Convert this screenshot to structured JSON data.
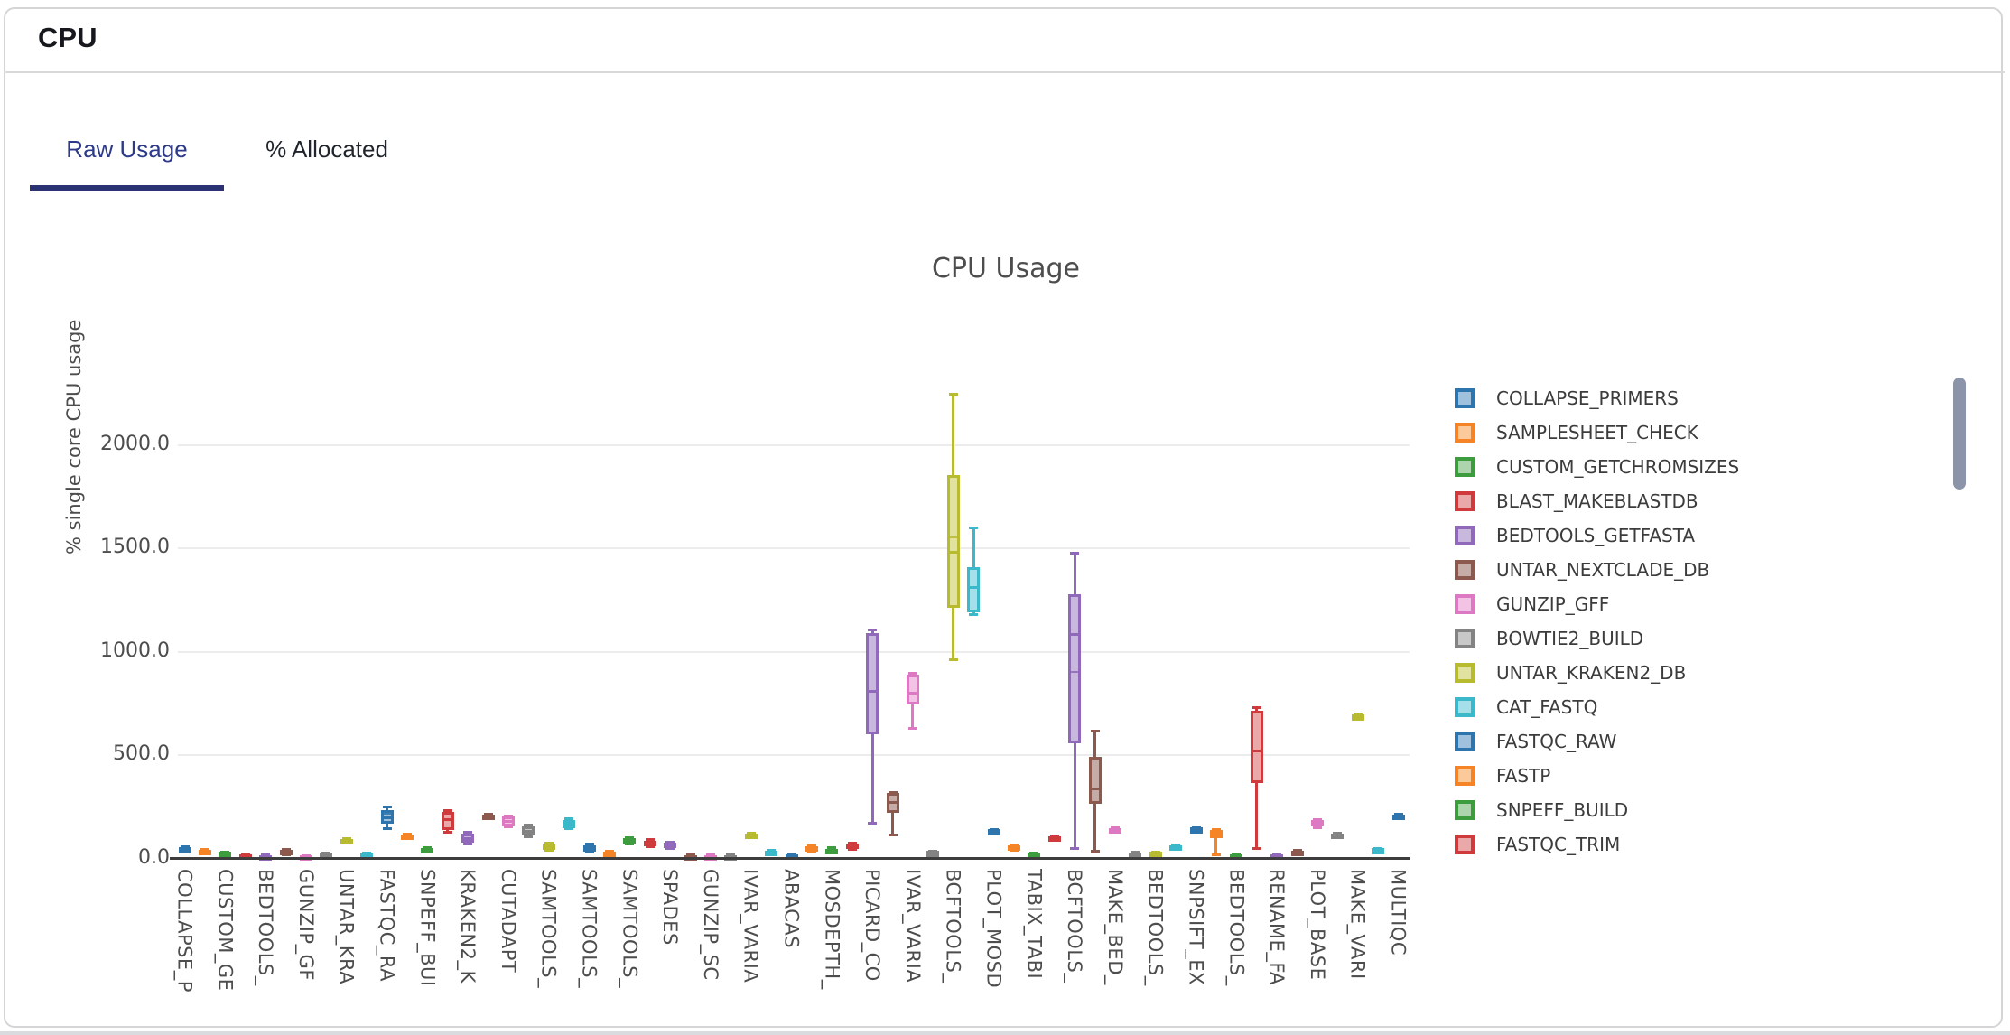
{
  "card": {
    "title": "CPU"
  },
  "tabs": {
    "active_label": "Raw Usage",
    "inactive_label": "% Allocated"
  },
  "colors": {
    "active_tab": "#2d3a8a",
    "tab_underline": "#2a3274",
    "scrollbar": "#8b94a8",
    "axis_line": "#3d3d3d",
    "grid_line": "#ececec"
  },
  "chart_data": {
    "type": "boxplot",
    "title": "CPU Usage",
    "ylabel": "% single core CPU usage",
    "xlabel": "",
    "grid": true,
    "legend_position": "right",
    "legend_scrollable": true,
    "ylim": [
      0,
      2300
    ],
    "yticks": [
      0,
      500,
      1000,
      1500,
      2000
    ],
    "ytick_labels": [
      "0.0",
      "500.0",
      "1000.0",
      "1500.0",
      "2000.0"
    ],
    "xtick_labels": [
      "COLLAPSE_P",
      "CUSTOM_GE",
      "BEDTOOLS_",
      "GUNZIP_GF",
      "UNTAR_KRA",
      "FASTQC_RA",
      "SNPEFF_BUI",
      "KRAKEN2_K",
      "CUTADAPT",
      "SAMTOOLS_",
      "SAMTOOLS_",
      "SAMTOOLS_",
      "SPADES",
      "GUNZIP_SC",
      "IVAR_VARIA",
      "ABACAS",
      "MOSDEPTH_",
      "PICARD_CO",
      "IVAR_VARIA",
      "BCFTOOLS_",
      "PLOT_MOSD",
      "TABIX_TABI",
      "BCFTOOLS_",
      "MAKE_BED_",
      "BEDTOOLS_",
      "SNPSIFT_EX",
      "BEDTOOLS_",
      "RENAME_FA",
      "PLOT_BASE",
      "MAKE_VARI",
      "MULTIQC"
    ],
    "series_format": [
      "low",
      "q1",
      "median",
      "q3",
      "high",
      "mean(optional)"
    ],
    "series": [
      [
        30,
        40,
        48,
        57,
        62
      ],
      [
        22,
        27,
        34,
        42,
        46
      ],
      [
        13,
        18,
        25,
        33,
        37
      ],
      [
        4,
        7,
        13,
        21,
        25
      ],
      [
        4,
        6,
        11,
        17,
        21
      ],
      [
        18,
        23,
        31,
        42,
        47
      ],
      [
        3,
        5,
        10,
        16,
        19
      ],
      [
        7,
        10,
        17,
        25,
        29
      ],
      [
        74,
        79,
        86,
        95,
        100
      ],
      [
        7,
        10,
        17,
        25,
        29
      ],
      [
        143,
        170,
        200,
        235,
        252,
        218
      ],
      [
        96,
        101,
        109,
        117,
        121
      ],
      [
        31,
        36,
        43,
        51,
        55
      ],
      [
        126,
        139,
        191,
        226,
        235
      ],
      [
        70,
        80,
        99,
        121,
        130
      ],
      [
        196,
        200,
        206,
        212,
        216
      ],
      [
        152,
        159,
        180,
        203,
        211
      ],
      [
        105,
        114,
        135,
        158,
        166
      ],
      [
        40,
        46,
        57,
        71,
        77
      ],
      [
        143,
        150,
        169,
        189,
        196
      ],
      [
        31,
        37,
        50,
        66,
        72
      ],
      [
        9,
        14,
        23,
        33,
        38
      ],
      [
        70,
        76,
        87,
        99,
        105
      ],
      [
        57,
        63,
        76,
        88,
        94
      ],
      [
        48,
        54,
        65,
        78,
        84
      ],
      [
        5,
        8,
        13,
        18,
        22
      ],
      [
        4,
        7,
        12,
        17,
        20
      ],
      [
        4,
        7,
        12,
        17,
        20
      ],
      [
        100,
        105,
        112,
        120,
        125
      ],
      [
        17,
        22,
        30,
        39,
        44
      ],
      [
        8,
        11,
        16,
        22,
        26
      ],
      [
        36,
        41,
        50,
        60,
        65
      ],
      [
        28,
        33,
        41,
        50,
        55
      ],
      [
        44,
        50,
        61,
        73,
        79
      ],
      [
        170,
        600,
        810,
        1090,
        1110
      ],
      [
        115,
        222,
        274,
        318,
        324
      ],
      [
        630,
        744,
        800,
        890,
        900
      ],
      [
        24,
        27,
        31,
        36,
        39
      ],
      [
        960,
        1215,
        1483,
        1855,
        2245,
        1553
      ],
      [
        1180,
        1192,
        1310,
        1410,
        1600
      ],
      [
        128,
        131,
        136,
        141,
        144
      ],
      [
        40,
        46,
        55,
        65,
        70
      ],
      [
        12,
        16,
        22,
        28,
        32
      ],
      [
        98,
        100,
        104,
        108,
        110
      ],
      [
        50,
        560,
        1085,
        1280,
        1480,
        905
      ],
      [
        35,
        265,
        340,
        495,
        620
      ],
      [
        126,
        131,
        139,
        147,
        152
      ],
      [
        14,
        18,
        23,
        29,
        33
      ],
      [
        18,
        22,
        27,
        33,
        37
      ],
      [
        48,
        52,
        59,
        66,
        70
      ],
      [
        136,
        139,
        144,
        149,
        152
      ],
      [
        17,
        100,
        120,
        138,
        143
      ],
      [
        12,
        14,
        17,
        21,
        23
      ],
      [
        50,
        365,
        520,
        715,
        732
      ],
      [
        10,
        13,
        17,
        21,
        24
      ],
      [
        22,
        26,
        32,
        39,
        43
      ],
      [
        148,
        155,
        170,
        186,
        192
      ],
      [
        105,
        110,
        116,
        123,
        127
      ],
      [
        686,
        688,
        691,
        694,
        696
      ],
      [
        35,
        39,
        44,
        49,
        52
      ],
      [
        196,
        200,
        207,
        214,
        218
      ]
    ],
    "palette": [
      {
        "name": "blue",
        "stroke": "#2e74ad",
        "fill": "#9fc1dd"
      },
      {
        "name": "orange",
        "stroke": "#f58426",
        "fill": "#fbc99a"
      },
      {
        "name": "green",
        "stroke": "#3d9c3d",
        "fill": "#aed4ae"
      },
      {
        "name": "red",
        "stroke": "#cf3b3c",
        "fill": "#eaa8a9"
      },
      {
        "name": "purple",
        "stroke": "#9069bb",
        "fill": "#c9b8de"
      },
      {
        "name": "brown",
        "stroke": "#8c594e",
        "fill": "#c6aca6"
      },
      {
        "name": "pink",
        "stroke": "#dd79c2",
        "fill": "#f2c3e4"
      },
      {
        "name": "gray",
        "stroke": "#838383",
        "fill": "#c8c8c8"
      },
      {
        "name": "olive",
        "stroke": "#b8ba30",
        "fill": "#e2e2a0"
      },
      {
        "name": "cyan",
        "stroke": "#3cb8cb",
        "fill": "#a5dfe9"
      }
    ],
    "legend": [
      {
        "label": "COLLAPSE_PRIMERS",
        "color": "blue"
      },
      {
        "label": "SAMPLESHEET_CHECK",
        "color": "orange"
      },
      {
        "label": "CUSTOM_GETCHROMSIZES",
        "color": "green"
      },
      {
        "label": "BLAST_MAKEBLASTDB",
        "color": "red"
      },
      {
        "label": "BEDTOOLS_GETFASTA",
        "color": "purple"
      },
      {
        "label": "UNTAR_NEXTCLADE_DB",
        "color": "brown"
      },
      {
        "label": "GUNZIP_GFF",
        "color": "pink"
      },
      {
        "label": "BOWTIE2_BUILD",
        "color": "gray"
      },
      {
        "label": "UNTAR_KRAKEN2_DB",
        "color": "olive"
      },
      {
        "label": "CAT_FASTQ",
        "color": "cyan"
      },
      {
        "label": "FASTQC_RAW",
        "color": "blue"
      },
      {
        "label": "FASTP",
        "color": "orange"
      },
      {
        "label": "SNPEFF_BUILD",
        "color": "green"
      },
      {
        "label": "FASTQC_TRIM",
        "color": "red"
      }
    ]
  }
}
